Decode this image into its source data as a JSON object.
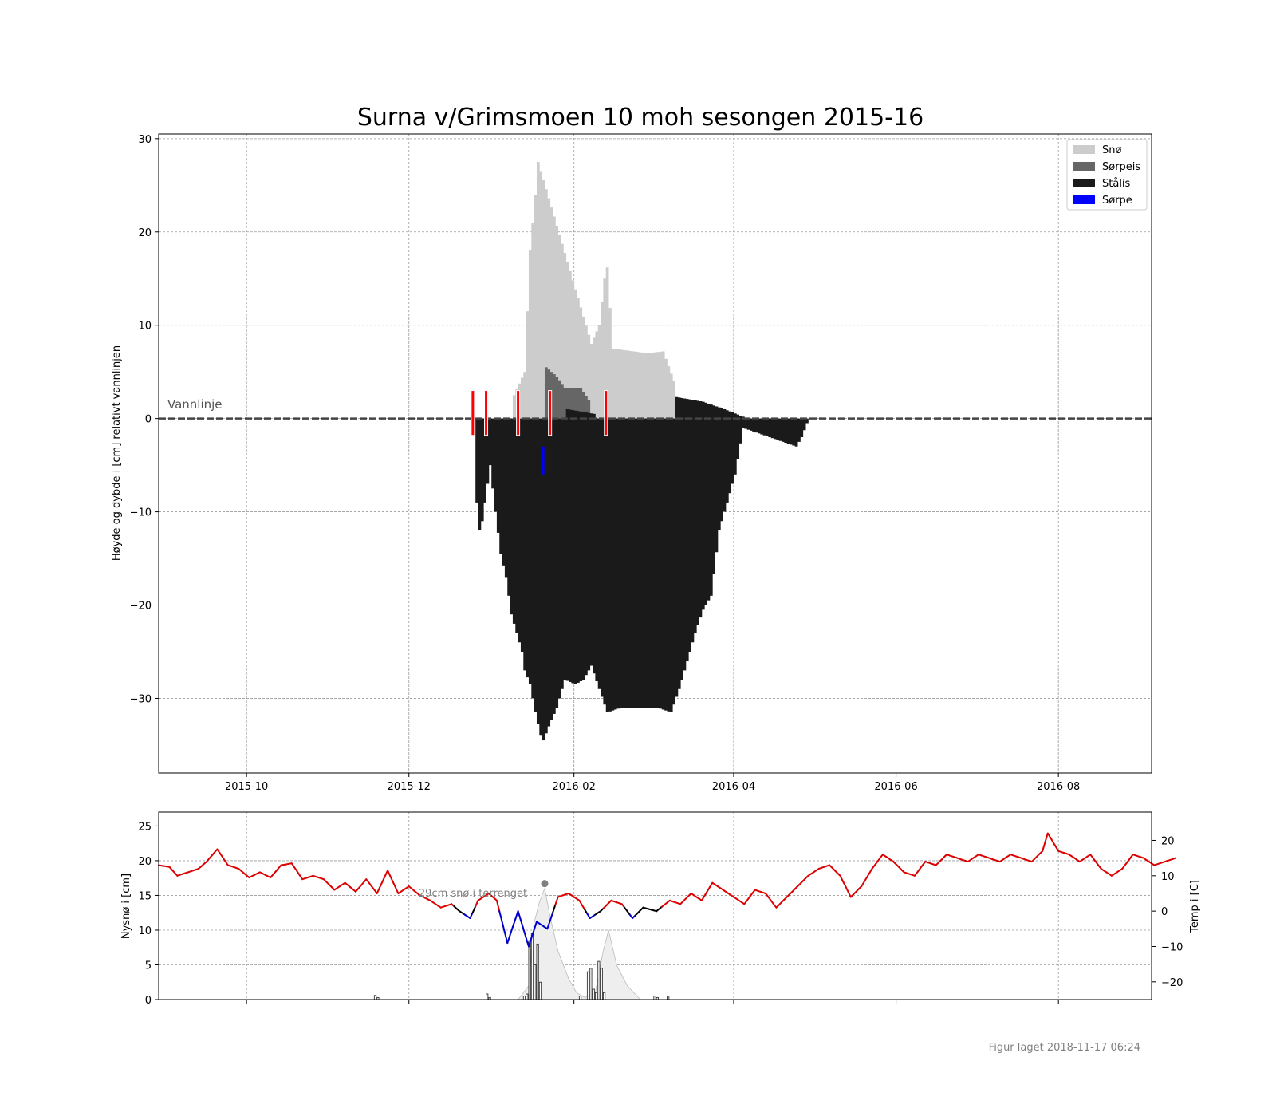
{
  "figure": {
    "title": "Surna v/Grimsmoen 10 moh sesongen 2015-16",
    "footer": "Figur laget 2018-11-17 06:24"
  },
  "colors": {
    "snow": "#cccccc",
    "slush_ice": "#666666",
    "black_ice": "#1a1a1a",
    "slush": "#0000ff",
    "marker": "#ff0000",
    "temp_warm": "#dd0000",
    "temp_cold": "#0000cc",
    "temp_mid": "#000000",
    "grid": "#999999"
  },
  "chart_data": [
    {
      "type": "bar",
      "title": "Surna v/Grimsmoen 10 moh sesongen 2015-16",
      "ylabel": "Høyde og dybde i [cm] relativt vannlinjen",
      "xlabel": "",
      "xlim": [
        "2015-08-29",
        "2016-09-05"
      ],
      "ylim": [
        -38,
        30.5
      ],
      "yticks": [
        30,
        20,
        10,
        0,
        -10,
        -20,
        -30
      ],
      "xticks": [
        "2015-10",
        "2015-12",
        "2016-02",
        "2016-04",
        "2016-06",
        "2016-08"
      ],
      "grid": true,
      "legend_position": "top-right",
      "annotation": "Vannlinje",
      "legend": [
        "Snø",
        "Sørpeis",
        "Stålis",
        "Sørpe"
      ],
      "series": [
        {
          "name": "Stålis",
          "points": [
            [
              "2015-12-26",
              -9
            ],
            [
              "2015-12-27",
              -12
            ],
            [
              "2015-12-28",
              -11
            ],
            [
              "2015-12-29",
              -9
            ],
            [
              "2015-12-31",
              -5
            ],
            [
              "2016-01-02",
              -10
            ],
            [
              "2016-01-04",
              -14.5
            ],
            [
              "2016-01-06",
              -17
            ],
            [
              "2016-01-08",
              -21
            ],
            [
              "2016-01-10",
              -23
            ],
            [
              "2016-01-12",
              -25
            ],
            [
              "2016-01-13",
              -27
            ],
            [
              "2016-01-15",
              -28.5
            ],
            [
              "2016-01-17",
              -31.5
            ],
            [
              "2016-01-19",
              -34
            ],
            [
              "2016-01-20",
              -34.5
            ],
            [
              "2016-01-22",
              -33
            ],
            [
              "2016-01-25",
              -31
            ],
            [
              "2016-01-28",
              -28
            ],
            [
              "2016-02-01",
              -28.5
            ],
            [
              "2016-02-04",
              -28
            ],
            [
              "2016-02-07",
              -26.5
            ],
            [
              "2016-02-10",
              -29
            ],
            [
              "2016-02-13",
              -31.5
            ],
            [
              "2016-02-18",
              -31
            ],
            [
              "2016-02-25",
              -31
            ],
            [
              "2016-03-03",
              -31
            ],
            [
              "2016-03-08",
              -31.5
            ],
            [
              "2016-03-11",
              -29
            ],
            [
              "2016-03-14",
              -26
            ],
            [
              "2016-03-17",
              -23
            ],
            [
              "2016-03-20",
              -20.5
            ],
            [
              "2016-03-23",
              -19
            ],
            [
              "2016-03-26",
              -12
            ],
            [
              "2016-03-29",
              -9
            ],
            [
              "2016-04-01",
              -6
            ],
            [
              "2016-04-04",
              -1
            ],
            [
              "2016-04-24",
              -3
            ],
            [
              "2016-04-26",
              -2
            ],
            [
              "2016-04-28",
              -0.5
            ]
          ]
        },
        {
          "name": "Sørpeis",
          "points": [
            [
              "2016-01-21",
              5.5
            ],
            [
              "2016-01-25",
              4.5
            ],
            [
              "2016-01-28",
              3.3
            ],
            [
              "2016-02-03",
              3.3
            ],
            [
              "2016-02-06",
              2.0
            ]
          ]
        },
        {
          "name": "Snø",
          "points": [
            [
              "2016-01-09",
              2.5
            ],
            [
              "2016-01-13",
              5
            ],
            [
              "2016-01-15",
              18
            ],
            [
              "2016-01-17",
              24
            ],
            [
              "2016-01-18",
              27.5
            ],
            [
              "2016-02-07",
              8
            ],
            [
              "2016-02-10",
              10
            ],
            [
              "2016-02-12",
              15
            ],
            [
              "2016-02-13",
              16.2
            ],
            [
              "2016-02-15",
              7.5
            ],
            [
              "2016-02-28",
              7
            ],
            [
              "2016-03-05",
              7.2
            ],
            [
              "2016-03-09",
              4
            ]
          ]
        },
        {
          "name": "Sørpe",
          "points": [
            [
              "2016-01-20",
              -3
            ],
            [
              "2016-01-21",
              -6
            ]
          ]
        }
      ],
      "markers": [
        "2015-12-25",
        "2015-12-30",
        "2016-01-11",
        "2016-01-23",
        "2016-02-13"
      ]
    },
    {
      "type": "line",
      "ylabel": "Nysnø i [cm]",
      "ylabel_right": "Temp i [C]",
      "ylim": [
        0,
        27
      ],
      "yticks": [
        0,
        5,
        10,
        15,
        20,
        25
      ],
      "ylim_right": [
        -25,
        28
      ],
      "yticks_right": [
        20,
        10,
        0,
        -10,
        -20
      ],
      "annotation": "29cm snø i terrenget",
      "grid": true,
      "temperature": [
        [
          "2015-08-29",
          13
        ],
        [
          "2015-09-02",
          12.5
        ],
        [
          "2015-09-05",
          10
        ],
        [
          "2015-09-09",
          11
        ],
        [
          "2015-09-13",
          12
        ],
        [
          "2015-09-16",
          14
        ],
        [
          "2015-09-20",
          17.5
        ],
        [
          "2015-09-24",
          13
        ],
        [
          "2015-09-28",
          12
        ],
        [
          "2015-10-02",
          9.5
        ],
        [
          "2015-10-06",
          11
        ],
        [
          "2015-10-10",
          9.5
        ],
        [
          "2015-10-14",
          13
        ],
        [
          "2015-10-18",
          13.5
        ],
        [
          "2015-10-22",
          9
        ],
        [
          "2015-10-26",
          10
        ],
        [
          "2015-10-30",
          9
        ],
        [
          "2015-11-03",
          6
        ],
        [
          "2015-11-07",
          8
        ],
        [
          "2015-11-11",
          5.5
        ],
        [
          "2015-11-15",
          9
        ],
        [
          "2015-11-19",
          5
        ],
        [
          "2015-11-23",
          11.5
        ],
        [
          "2015-11-27",
          5
        ],
        [
          "2015-12-01",
          7
        ],
        [
          "2015-12-05",
          4.5
        ],
        [
          "2015-12-09",
          3
        ],
        [
          "2015-12-13",
          1
        ],
        [
          "2015-12-17",
          2
        ],
        [
          "2015-12-20",
          0
        ],
        [
          "2015-12-24",
          -2
        ],
        [
          "2015-12-27",
          3
        ],
        [
          "2015-12-31",
          5
        ],
        [
          "2016-01-03",
          3
        ],
        [
          "2016-01-07",
          -9
        ],
        [
          "2016-01-11",
          0
        ],
        [
          "2016-01-15",
          -10
        ],
        [
          "2016-01-18",
          -3
        ],
        [
          "2016-01-22",
          -5
        ],
        [
          "2016-01-26",
          4
        ],
        [
          "2016-01-30",
          5
        ],
        [
          "2016-02-03",
          3
        ],
        [
          "2016-02-07",
          -2
        ],
        [
          "2016-02-11",
          0
        ],
        [
          "2016-02-15",
          3
        ],
        [
          "2016-02-19",
          2
        ],
        [
          "2016-02-23",
          -2
        ],
        [
          "2016-02-27",
          1
        ],
        [
          "2016-03-03",
          0
        ],
        [
          "2016-03-08",
          3
        ],
        [
          "2016-03-12",
          2
        ],
        [
          "2016-03-16",
          5
        ],
        [
          "2016-03-20",
          3
        ],
        [
          "2016-03-24",
          8
        ],
        [
          "2016-03-28",
          6
        ],
        [
          "2016-04-01",
          4
        ],
        [
          "2016-04-05",
          2
        ],
        [
          "2016-04-09",
          6
        ],
        [
          "2016-04-13",
          5
        ],
        [
          "2016-04-17",
          1
        ],
        [
          "2016-04-21",
          4
        ],
        [
          "2016-04-25",
          7
        ],
        [
          "2016-04-29",
          10
        ],
        [
          "2016-05-03",
          12
        ],
        [
          "2016-05-07",
          13
        ],
        [
          "2016-05-11",
          10
        ],
        [
          "2016-05-15",
          4
        ],
        [
          "2016-05-19",
          7
        ],
        [
          "2016-05-23",
          12
        ],
        [
          "2016-05-27",
          16
        ],
        [
          "2016-05-31",
          14
        ],
        [
          "2016-06-04",
          11
        ],
        [
          "2016-06-08",
          10
        ],
        [
          "2016-06-12",
          14
        ],
        [
          "2016-06-16",
          13
        ],
        [
          "2016-06-20",
          16
        ],
        [
          "2016-06-24",
          15
        ],
        [
          "2016-06-28",
          14
        ],
        [
          "2016-07-02",
          16
        ],
        [
          "2016-07-06",
          15
        ],
        [
          "2016-07-10",
          14
        ],
        [
          "2016-07-14",
          16
        ],
        [
          "2016-07-18",
          15
        ],
        [
          "2016-07-22",
          14
        ],
        [
          "2016-07-26",
          17
        ],
        [
          "2016-07-28",
          22
        ],
        [
          "2016-08-01",
          17
        ],
        [
          "2016-08-05",
          16
        ],
        [
          "2016-08-09",
          14
        ],
        [
          "2016-08-13",
          16
        ],
        [
          "2016-08-17",
          12
        ],
        [
          "2016-08-21",
          10
        ],
        [
          "2016-08-25",
          12
        ],
        [
          "2016-08-29",
          16
        ],
        [
          "2016-09-02",
          15
        ],
        [
          "2016-09-06",
          13
        ],
        [
          "2016-09-10",
          14
        ],
        [
          "2016-09-14",
          15
        ]
      ],
      "snow_depth_terrain": [
        [
          "2016-01-11",
          0
        ],
        [
          "2016-01-15",
          2
        ],
        [
          "2016-01-17",
          11
        ],
        [
          "2016-01-19",
          14
        ],
        [
          "2016-01-21",
          16
        ],
        [
          "2016-01-23",
          12
        ],
        [
          "2016-01-26",
          7
        ],
        [
          "2016-01-30",
          3
        ],
        [
          "2016-02-02",
          1
        ],
        [
          "2016-02-05",
          0.3
        ],
        [
          "2016-02-09",
          1
        ],
        [
          "2016-02-12",
          7
        ],
        [
          "2016-02-14",
          10
        ],
        [
          "2016-02-17",
          5
        ],
        [
          "2016-02-21",
          2
        ],
        [
          "2016-02-26",
          0
        ]
      ],
      "new_snow": [
        [
          "2015-11-18",
          0.6
        ],
        [
          "2015-11-19",
          0.3
        ],
        [
          "2015-12-30",
          0.8
        ],
        [
          "2015-12-31",
          0.3
        ],
        [
          "2016-01-13",
          0.5
        ],
        [
          "2016-01-14",
          0.8
        ],
        [
          "2016-01-15",
          8.5
        ],
        [
          "2016-01-16",
          9.5
        ],
        [
          "2016-01-17",
          5.0
        ],
        [
          "2016-01-18",
          8.0
        ],
        [
          "2016-01-19",
          2.5
        ],
        [
          "2016-02-03",
          0.5
        ],
        [
          "2016-02-06",
          4.0
        ],
        [
          "2016-02-07",
          4.5
        ],
        [
          "2016-02-08",
          1.5
        ],
        [
          "2016-02-09",
          1.0
        ],
        [
          "2016-02-10",
          5.5
        ],
        [
          "2016-02-11",
          4.5
        ],
        [
          "2016-02-12",
          1.0
        ],
        [
          "2016-03-02",
          0.5
        ],
        [
          "2016-03-03",
          0.3
        ],
        [
          "2016-03-07",
          0.5
        ]
      ],
      "snow_depth_max_point": [
        "2016-01-21",
        16.7
      ]
    }
  ]
}
